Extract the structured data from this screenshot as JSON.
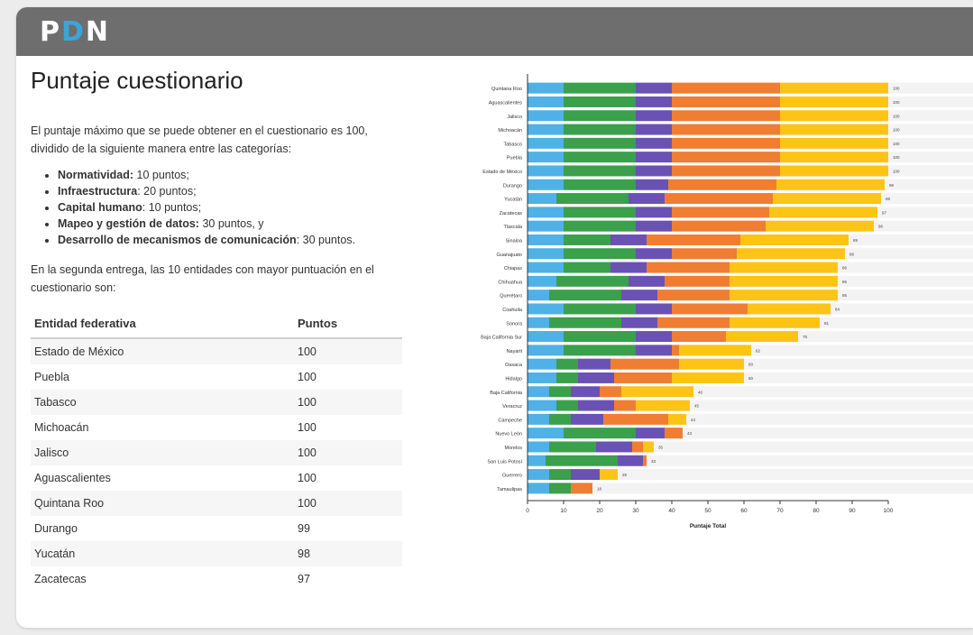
{
  "header": {
    "logo_part1": "P",
    "logo_part2": "D",
    "logo_part3": "N"
  },
  "section": {
    "title": "Puntaje cuestionario",
    "intro": "El puntaje máximo que se puede obtener en el cuestionario es 100, dividido de la siguiente manera entre las categorías:",
    "categories": [
      {
        "name": "Normatividad:",
        "value": " 10 puntos;"
      },
      {
        "name": "Infraestructura",
        "value": ": 20 puntos;"
      },
      {
        "name": "Capital humano",
        "value": ": 10 puntos;"
      },
      {
        "name": "Mapeo y gestión de datos:",
        "value": " 30 puntos, y"
      },
      {
        "name": "Desarrollo de mecanismos de comunicación",
        "value": ": 30 puntos."
      }
    ],
    "outro": "En la segunda entrega, las 10 entidades con mayor puntuación en el cuestionario son:"
  },
  "ranking_table": {
    "headers": [
      "Entidad federativa",
      "Puntos"
    ],
    "rows": [
      [
        "Estado de México",
        "100"
      ],
      [
        "Puebla",
        "100"
      ],
      [
        "Tabasco",
        "100"
      ],
      [
        "Michoacán",
        "100"
      ],
      [
        "Jalisco",
        "100"
      ],
      [
        "Aguascalientes",
        "100"
      ],
      [
        "Quintana Roo",
        "100"
      ],
      [
        "Durango",
        "99"
      ],
      [
        "Yucatán",
        "98"
      ],
      [
        "Zacatecas",
        "97"
      ]
    ]
  },
  "chart_data": {
    "type": "bar",
    "orientation": "horizontal",
    "stacked": true,
    "xlabel": "Puntaje Total",
    "xlim": [
      0,
      100
    ],
    "xticks": [
      0,
      10,
      20,
      30,
      40,
      50,
      60,
      70,
      80,
      90,
      100
    ],
    "colors": [
      "#4fb1e6",
      "#3aa04b",
      "#6a52b4",
      "#ef7d32",
      "#fdc416"
    ],
    "categories": [
      "Quintana Roo",
      "Aguascalientes",
      "Jalisco",
      "Michoacán",
      "Tabasco",
      "Puebla",
      "Estado de México",
      "Durango",
      "Yucatán",
      "Zacatecas",
      "Tlaxcala",
      "Sinaloa",
      "Guanajuato",
      "Chiapas",
      "Chihuahua",
      "Querétaro",
      "Coahuila",
      "Sonora",
      "Baja California Sur",
      "Nayarit",
      "Oaxaca",
      "Hidalgo",
      "Baja California",
      "Veracruz",
      "Campeche",
      "Nuevo León",
      "Morelos",
      "San Luis Potosí",
      "Guerrero",
      "Tamaulipas"
    ],
    "segments": [
      [
        10,
        20,
        10,
        30,
        30
      ],
      [
        10,
        20,
        10,
        30,
        30
      ],
      [
        10,
        20,
        10,
        30,
        30
      ],
      [
        10,
        20,
        10,
        30,
        30
      ],
      [
        10,
        20,
        10,
        30,
        30
      ],
      [
        10,
        20,
        10,
        30,
        30
      ],
      [
        10,
        20,
        10,
        30,
        30
      ],
      [
        10,
        20,
        9,
        30,
        30
      ],
      [
        8,
        20,
        10,
        30,
        30
      ],
      [
        10,
        20,
        10,
        27,
        30
      ],
      [
        10,
        20,
        10,
        26,
        30
      ],
      [
        10,
        13,
        10,
        26,
        30
      ],
      [
        10,
        20,
        10,
        18,
        30
      ],
      [
        10,
        13,
        10,
        23,
        30
      ],
      [
        8,
        20,
        10,
        18,
        30
      ],
      [
        6,
        20,
        10,
        20,
        30
      ],
      [
        10,
        20,
        10,
        21,
        23
      ],
      [
        6,
        20,
        10,
        20,
        25
      ],
      [
        10,
        20,
        10,
        15,
        20
      ],
      [
        10,
        20,
        10,
        2,
        20
      ],
      [
        8,
        6,
        9,
        19,
        18
      ],
      [
        8,
        6,
        10,
        16,
        20
      ],
      [
        6,
        6,
        8,
        6,
        20
      ],
      [
        8,
        6,
        10,
        6,
        15
      ],
      [
        6,
        6,
        9,
        18,
        5
      ],
      [
        10,
        20,
        8,
        5,
        0
      ],
      [
        6,
        13,
        10,
        3,
        3
      ],
      [
        5,
        20,
        7,
        1,
        0
      ],
      [
        6,
        6,
        8,
        0,
        5
      ],
      [
        6,
        6,
        0,
        6,
        0
      ]
    ],
    "totals": [
      "100",
      "100",
      "100",
      "100",
      "100",
      "100",
      "100",
      "99",
      "98",
      "97",
      "96",
      "89",
      "88",
      "86",
      "86",
      "86",
      "84",
      "81",
      "75",
      "62",
      "60",
      "60",
      "46",
      "45",
      "44",
      "43",
      "35",
      "33",
      "25",
      "18"
    ]
  }
}
